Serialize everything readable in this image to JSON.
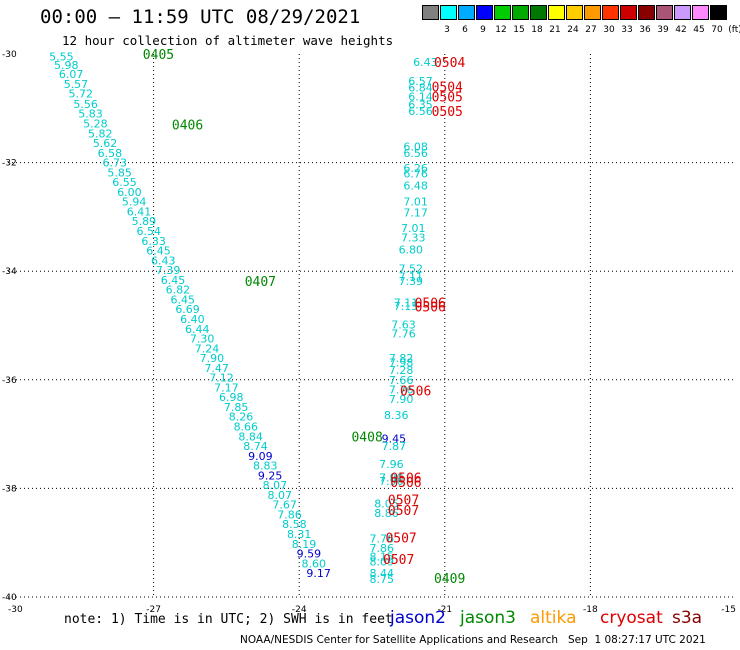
{
  "header": {
    "title": "00:00 – 11:59 UTC 08/29/2021",
    "subtitle": "12 hour collection of altimeter wave heights"
  },
  "footer": {
    "note": "note: 1) Time is in UTC; 2) SWH is in feet",
    "credit": "NOAA/NESDIS Center for Satellite Applications and Research   Sep  1 08:27:17 UTC 2021",
    "satellites": [
      {
        "name": "jason2",
        "color": "#0000cc"
      },
      {
        "name": "jason3",
        "color": "#008800"
      },
      {
        "name": "altika",
        "color": "#ff9900"
      },
      {
        "name": "cryosat",
        "color": "#dd0000"
      },
      {
        "name": "s3a",
        "color": "#880000"
      }
    ]
  },
  "colorbar": {
    "labels": [
      "3",
      "6",
      "9",
      "12",
      "15",
      "18",
      "21",
      "24",
      "27",
      "30",
      "33",
      "36",
      "39",
      "42",
      "45",
      "70",
      "(ft)"
    ],
    "colors": [
      "#808080",
      "#00ffff",
      "#00aaff",
      "#0000ff",
      "#00cc00",
      "#00aa00",
      "#007700",
      "#ffff00",
      "#ffcc00",
      "#ff9900",
      "#ff3300",
      "#cc0000",
      "#880000",
      "#aa5577",
      "#cc99ff",
      "#ff88ff",
      "#000000"
    ]
  },
  "chart_data": {
    "type": "scatter",
    "xlim": [
      -30,
      -15
    ],
    "ylim": [
      -40,
      -30
    ],
    "x_ticks": [
      "-30",
      "-27",
      "-24",
      "-21",
      "-18",
      "-15"
    ],
    "y_ticks": [
      "-30",
      "-32",
      "-34",
      "-36",
      "-38",
      "-40"
    ],
    "grid": true,
    "points": [
      {
        "lon": -28.9,
        "lat": -30.05,
        "v": "5.55",
        "c": "#00cccc"
      },
      {
        "lon": -28.8,
        "lat": -30.2,
        "v": "5.98",
        "c": "#00cccc"
      },
      {
        "lon": -28.7,
        "lat": -30.37,
        "v": "6.07",
        "c": "#00cccc"
      },
      {
        "lon": -28.6,
        "lat": -30.55,
        "v": "5.57",
        "c": "#00cccc"
      },
      {
        "lon": -28.5,
        "lat": -30.73,
        "v": "5.72",
        "c": "#00cccc"
      },
      {
        "lon": -28.4,
        "lat": -30.92,
        "v": "5.56",
        "c": "#00cccc"
      },
      {
        "lon": -28.3,
        "lat": -31.1,
        "v": "5.83",
        "c": "#00cccc"
      },
      {
        "lon": -28.2,
        "lat": -31.28,
        "v": "5.28",
        "c": "#00cccc"
      },
      {
        "lon": -28.1,
        "lat": -31.46,
        "v": "5.82",
        "c": "#00cccc"
      },
      {
        "lon": -28.0,
        "lat": -31.64,
        "v": "5.62",
        "c": "#00cccc"
      },
      {
        "lon": -27.9,
        "lat": -31.82,
        "v": "6.58",
        "c": "#00cccc"
      },
      {
        "lon": -27.8,
        "lat": -32.0,
        "v": "6.73",
        "c": "#00cccc"
      },
      {
        "lon": -27.7,
        "lat": -32.18,
        "v": "5.85",
        "c": "#00cccc"
      },
      {
        "lon": -27.6,
        "lat": -32.36,
        "v": "6.55",
        "c": "#00cccc"
      },
      {
        "lon": -27.5,
        "lat": -32.54,
        "v": "6.00",
        "c": "#00cccc"
      },
      {
        "lon": -27.4,
        "lat": -32.72,
        "v": "5.94",
        "c": "#00cccc"
      },
      {
        "lon": -27.3,
        "lat": -32.9,
        "v": "6.41",
        "c": "#00cccc"
      },
      {
        "lon": -27.2,
        "lat": -33.08,
        "v": "5.89",
        "c": "#00cccc"
      },
      {
        "lon": -27.1,
        "lat": -33.26,
        "v": "6.54",
        "c": "#00cccc"
      },
      {
        "lon": -27.0,
        "lat": -33.44,
        "v": "6.33",
        "c": "#00cccc"
      },
      {
        "lon": -26.9,
        "lat": -33.62,
        "v": "6.45",
        "c": "#00cccc"
      },
      {
        "lon": -26.8,
        "lat": -33.8,
        "v": "6.43",
        "c": "#00cccc"
      },
      {
        "lon": -26.7,
        "lat": -33.98,
        "v": "7.39",
        "c": "#00cccc"
      },
      {
        "lon": -26.6,
        "lat": -34.16,
        "v": "6.45",
        "c": "#00cccc"
      },
      {
        "lon": -26.5,
        "lat": -34.34,
        "v": "6.82",
        "c": "#00cccc"
      },
      {
        "lon": -26.4,
        "lat": -34.52,
        "v": "6.45",
        "c": "#00cccc"
      },
      {
        "lon": -26.3,
        "lat": -34.7,
        "v": "6.69",
        "c": "#00cccc"
      },
      {
        "lon": -26.2,
        "lat": -34.88,
        "v": "6.40",
        "c": "#00cccc"
      },
      {
        "lon": -26.1,
        "lat": -35.06,
        "v": "6.44",
        "c": "#00cccc"
      },
      {
        "lon": -26.0,
        "lat": -35.24,
        "v": "7.30",
        "c": "#00cccc"
      },
      {
        "lon": -25.9,
        "lat": -35.42,
        "v": "7.24",
        "c": "#00cccc"
      },
      {
        "lon": -25.8,
        "lat": -35.6,
        "v": "7.90",
        "c": "#00cccc"
      },
      {
        "lon": -25.7,
        "lat": -35.78,
        "v": "7.47",
        "c": "#00cccc"
      },
      {
        "lon": -25.6,
        "lat": -35.96,
        "v": "7.12",
        "c": "#00cccc"
      },
      {
        "lon": -25.5,
        "lat": -36.14,
        "v": "7.17",
        "c": "#00cccc"
      },
      {
        "lon": -25.4,
        "lat": -36.32,
        "v": "6.98",
        "c": "#00cccc"
      },
      {
        "lon": -25.3,
        "lat": -36.5,
        "v": "7.85",
        "c": "#00cccc"
      },
      {
        "lon": -25.2,
        "lat": -36.68,
        "v": "8.26",
        "c": "#00cccc"
      },
      {
        "lon": -25.1,
        "lat": -36.86,
        "v": "8.66",
        "c": "#00cccc"
      },
      {
        "lon": -25.0,
        "lat": -37.04,
        "v": "8.84",
        "c": "#00cccc"
      },
      {
        "lon": -24.9,
        "lat": -37.22,
        "v": "8.74",
        "c": "#00cccc"
      },
      {
        "lon": -24.8,
        "lat": -37.4,
        "v": "9.09",
        "c": "#0000cc"
      },
      {
        "lon": -24.7,
        "lat": -37.58,
        "v": "8.83",
        "c": "#00cccc"
      },
      {
        "lon": -24.6,
        "lat": -37.76,
        "v": "9.25",
        "c": "#0000cc"
      },
      {
        "lon": -24.5,
        "lat": -37.94,
        "v": "8.07",
        "c": "#00cccc"
      },
      {
        "lon": -24.4,
        "lat": -38.12,
        "v": "8.07",
        "c": "#00cccc"
      },
      {
        "lon": -24.3,
        "lat": -38.3,
        "v": "7.67",
        "c": "#00cccc"
      },
      {
        "lon": -24.2,
        "lat": -38.48,
        "v": "7.86",
        "c": "#00cccc"
      },
      {
        "lon": -24.1,
        "lat": -38.66,
        "v": "8.58",
        "c": "#00cccc"
      },
      {
        "lon": -24.0,
        "lat": -38.84,
        "v": "8.31",
        "c": "#00cccc"
      },
      {
        "lon": -23.9,
        "lat": -39.02,
        "v": "8.19",
        "c": "#00cccc"
      },
      {
        "lon": -23.8,
        "lat": -39.2,
        "v": "9.59",
        "c": "#0000cc"
      },
      {
        "lon": -23.7,
        "lat": -39.38,
        "v": "8.60",
        "c": "#00cccc"
      },
      {
        "lon": -23.6,
        "lat": -39.56,
        "v": "9.17",
        "c": "#0000cc"
      },
      {
        "lon": -21.4,
        "lat": -30.15,
        "v": "6.43",
        "c": "#00cccc"
      },
      {
        "lon": -21.5,
        "lat": -30.5,
        "v": "6.57",
        "c": "#00cccc"
      },
      {
        "lon": -21.5,
        "lat": -30.62,
        "v": "6.84",
        "c": "#00cccc"
      },
      {
        "lon": -21.5,
        "lat": -30.78,
        "v": "6.14",
        "c": "#00cccc"
      },
      {
        "lon": -21.5,
        "lat": -30.93,
        "v": "6.35",
        "c": "#00cccc"
      },
      {
        "lon": -21.5,
        "lat": -31.05,
        "v": "6.56",
        "c": "#00cccc"
      },
      {
        "lon": -21.6,
        "lat": -31.7,
        "v": "6.08",
        "c": "#00cccc"
      },
      {
        "lon": -21.6,
        "lat": -31.82,
        "v": "6.56",
        "c": "#00cccc"
      },
      {
        "lon": -21.6,
        "lat": -32.1,
        "v": "6.26",
        "c": "#00cccc"
      },
      {
        "lon": -21.6,
        "lat": -32.2,
        "v": "6.76",
        "c": "#00cccc"
      },
      {
        "lon": -21.6,
        "lat": -32.42,
        "v": "6.48",
        "c": "#00cccc"
      },
      {
        "lon": -21.6,
        "lat": -32.72,
        "v": "7.01",
        "c": "#00cccc"
      },
      {
        "lon": -21.6,
        "lat": -32.92,
        "v": "7.17",
        "c": "#00cccc"
      },
      {
        "lon": -21.65,
        "lat": -33.2,
        "v": "7.01",
        "c": "#00cccc"
      },
      {
        "lon": -21.65,
        "lat": -33.38,
        "v": "7.33",
        "c": "#00cccc"
      },
      {
        "lon": -21.7,
        "lat": -33.6,
        "v": "6.80",
        "c": "#00cccc"
      },
      {
        "lon": -21.7,
        "lat": -33.95,
        "v": "7.52",
        "c": "#00cccc"
      },
      {
        "lon": -21.7,
        "lat": -34.1,
        "v": "7.11",
        "c": "#00cccc"
      },
      {
        "lon": -21.7,
        "lat": -34.18,
        "v": "7.39",
        "c": "#00cccc"
      },
      {
        "lon": -21.8,
        "lat": -34.58,
        "v": "7.11",
        "c": "#00cccc"
      },
      {
        "lon": -21.8,
        "lat": -34.64,
        "v": "7.15",
        "c": "#00cccc"
      },
      {
        "lon": -21.85,
        "lat": -34.98,
        "v": "7.63",
        "c": "#00cccc"
      },
      {
        "lon": -21.85,
        "lat": -35.15,
        "v": "7.76",
        "c": "#00cccc"
      },
      {
        "lon": -21.9,
        "lat": -35.6,
        "v": "7.82",
        "c": "#00cccc"
      },
      {
        "lon": -21.9,
        "lat": -35.68,
        "v": "7.98",
        "c": "#00cccc"
      },
      {
        "lon": -21.9,
        "lat": -35.82,
        "v": "7.28",
        "c": "#00cccc"
      },
      {
        "lon": -21.9,
        "lat": -36.0,
        "v": "7.66",
        "c": "#00cccc"
      },
      {
        "lon": -21.9,
        "lat": -36.18,
        "v": "7.76",
        "c": "#00cccc"
      },
      {
        "lon": -21.9,
        "lat": -36.35,
        "v": "7.90",
        "c": "#00cccc"
      },
      {
        "lon": -22.0,
        "lat": -36.65,
        "v": "8.36",
        "c": "#00cccc"
      },
      {
        "lon": -22.05,
        "lat": -37.08,
        "v": "9.45",
        "c": "#0000cc"
      },
      {
        "lon": -22.05,
        "lat": -37.22,
        "v": "7.87",
        "c": "#00cccc"
      },
      {
        "lon": -22.1,
        "lat": -37.55,
        "v": "7.96",
        "c": "#00cccc"
      },
      {
        "lon": -22.1,
        "lat": -37.8,
        "v": "7.90",
        "c": "#00cccc"
      },
      {
        "lon": -22.1,
        "lat": -37.86,
        "v": "7.96",
        "c": "#00cccc"
      },
      {
        "lon": -22.2,
        "lat": -38.28,
        "v": "8.05",
        "c": "#00cccc"
      },
      {
        "lon": -22.2,
        "lat": -38.45,
        "v": "8.86",
        "c": "#00cccc"
      },
      {
        "lon": -22.3,
        "lat": -38.92,
        "v": "7.76",
        "c": "#00cccc"
      },
      {
        "lon": -22.3,
        "lat": -39.1,
        "v": "7.86",
        "c": "#00cccc"
      },
      {
        "lon": -22.3,
        "lat": -39.25,
        "v": "8.15",
        "c": "#00cccc"
      },
      {
        "lon": -22.3,
        "lat": -39.35,
        "v": "8.09",
        "c": "#00cccc"
      },
      {
        "lon": -22.3,
        "lat": -39.56,
        "v": "8.44",
        "c": "#00cccc"
      },
      {
        "lon": -22.3,
        "lat": -39.67,
        "v": "8.75",
        "c": "#00cccc"
      }
    ],
    "time_labels": [
      {
        "lon": -26.9,
        "lat": -30.0,
        "text": "0405",
        "c": "#008800"
      },
      {
        "lon": -26.3,
        "lat": -31.3,
        "text": "0406",
        "c": "#008800"
      },
      {
        "lon": -24.8,
        "lat": -34.18,
        "text": "0407",
        "c": "#008800"
      },
      {
        "lon": -22.6,
        "lat": -37.04,
        "text": "0408",
        "c": "#008800"
      },
      {
        "lon": -20.9,
        "lat": -39.65,
        "text": "0409",
        "c": "#008800"
      },
      {
        "lon": -20.9,
        "lat": -30.15,
        "text": "0504",
        "c": "#dd0000"
      },
      {
        "lon": -20.95,
        "lat": -30.6,
        "text": "0504",
        "c": "#dd0000"
      },
      {
        "lon": -20.95,
        "lat": -30.78,
        "text": "0505",
        "c": "#dd0000"
      },
      {
        "lon": -20.95,
        "lat": -31.05,
        "text": "0505",
        "c": "#dd0000"
      },
      {
        "lon": -21.3,
        "lat": -34.58,
        "text": "0506",
        "c": "#dd0000"
      },
      {
        "lon": -21.3,
        "lat": -34.65,
        "text": "0506",
        "c": "#dd0000"
      },
      {
        "lon": -21.6,
        "lat": -36.2,
        "text": "0506",
        "c": "#dd0000"
      },
      {
        "lon": -21.8,
        "lat": -37.8,
        "text": "0506",
        "c": "#dd0000"
      },
      {
        "lon": -21.8,
        "lat": -37.88,
        "text": "0506",
        "c": "#dd0000"
      },
      {
        "lon": -21.85,
        "lat": -38.2,
        "text": "0507",
        "c": "#dd0000"
      },
      {
        "lon": -21.85,
        "lat": -38.4,
        "text": "0507",
        "c": "#dd0000"
      },
      {
        "lon": -21.9,
        "lat": -38.9,
        "text": "0507",
        "c": "#dd0000"
      },
      {
        "lon": -21.95,
        "lat": -39.3,
        "text": "0507",
        "c": "#dd0000"
      }
    ]
  }
}
